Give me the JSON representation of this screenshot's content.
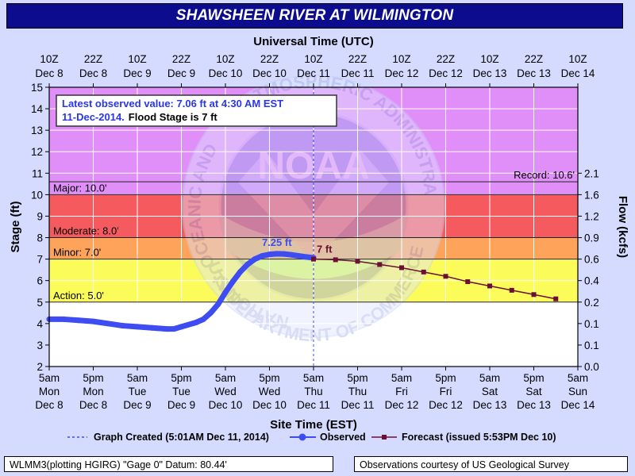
{
  "chart_data": {
    "type": "line",
    "title": "SHAWSHEEN RIVER AT WILMINGTON",
    "top_axis_title": "Universal Time (UTC)",
    "bottom_axis_title": "Site Time (EST)",
    "left_axis_title": "Stage (ft)",
    "right_axis_title": "Flow (kcfs)",
    "x_range_hours": [
      0,
      144
    ],
    "ylim": [
      2,
      15
    ],
    "y_ticks": [
      "2",
      "3",
      "4",
      "5",
      "6",
      "7",
      "8",
      "9",
      "10",
      "11",
      "12",
      "13",
      "14",
      "15"
    ],
    "flow_ticks": [
      {
        "stage": 2.0,
        "label": "0.0"
      },
      {
        "stage": 3.0,
        "label": "0.1"
      },
      {
        "stage": 4.0,
        "label": "0.1"
      },
      {
        "stage": 5.0,
        "label": "0.2"
      },
      {
        "stage": 6.0,
        "label": "0.4"
      },
      {
        "stage": 7.0,
        "label": "0.6"
      },
      {
        "stage": 8.0,
        "label": "0.9"
      },
      {
        "stage": 9.0,
        "label": "1.2"
      },
      {
        "stage": 10.0,
        "label": "1.6"
      },
      {
        "stage": 11.0,
        "label": "2.1"
      }
    ],
    "utc_ticks": [
      {
        "hour": 0,
        "l1": "10Z",
        "l2": "Dec 8"
      },
      {
        "hour": 12,
        "l1": "22Z",
        "l2": "Dec 8"
      },
      {
        "hour": 24,
        "l1": "10Z",
        "l2": "Dec 9"
      },
      {
        "hour": 36,
        "l1": "22Z",
        "l2": "Dec 9"
      },
      {
        "hour": 48,
        "l1": "10Z",
        "l2": "Dec 10"
      },
      {
        "hour": 60,
        "l1": "22Z",
        "l2": "Dec 10"
      },
      {
        "hour": 72,
        "l1": "10Z",
        "l2": "Dec 11"
      },
      {
        "hour": 84,
        "l1": "22Z",
        "l2": "Dec 11"
      },
      {
        "hour": 96,
        "l1": "10Z",
        "l2": "Dec 12"
      },
      {
        "hour": 108,
        "l1": "22Z",
        "l2": "Dec 12"
      },
      {
        "hour": 120,
        "l1": "10Z",
        "l2": "Dec 13"
      },
      {
        "hour": 132,
        "l1": "22Z",
        "l2": "Dec 13"
      },
      {
        "hour": 144,
        "l1": "10Z",
        "l2": "Dec 14"
      }
    ],
    "est_ticks": [
      {
        "hour": 0,
        "l1": "5am",
        "l2": "Mon",
        "l3": "Dec 8"
      },
      {
        "hour": 12,
        "l1": "5pm",
        "l2": "Mon",
        "l3": "Dec 8"
      },
      {
        "hour": 24,
        "l1": "5am",
        "l2": "Tue",
        "l3": "Dec 9"
      },
      {
        "hour": 36,
        "l1": "5pm",
        "l2": "Tue",
        "l3": "Dec 9"
      },
      {
        "hour": 48,
        "l1": "5am",
        "l2": "Wed",
        "l3": "Dec 10"
      },
      {
        "hour": 60,
        "l1": "5pm",
        "l2": "Wed",
        "l3": "Dec 10"
      },
      {
        "hour": 72,
        "l1": "5am",
        "l2": "Thu",
        "l3": "Dec 11"
      },
      {
        "hour": 84,
        "l1": "5pm",
        "l2": "Thu",
        "l3": "Dec 11"
      },
      {
        "hour": 96,
        "l1": "5am",
        "l2": "Fri",
        "l3": "Dec 12"
      },
      {
        "hour": 108,
        "l1": "5pm",
        "l2": "Fri",
        "l3": "Dec 12"
      },
      {
        "hour": 120,
        "l1": "5am",
        "l2": "Sat",
        "l3": "Dec 13"
      },
      {
        "hour": 132,
        "l1": "5pm",
        "l2": "Sat",
        "l3": "Dec 13"
      },
      {
        "hour": 144,
        "l1": "5am",
        "l2": "Sun",
        "l3": "Dec 14"
      }
    ],
    "bands": [
      {
        "name": "record",
        "from": 10.0,
        "to": 15.0,
        "color": "#e08ef8"
      },
      {
        "name": "major",
        "from": 8.0,
        "to": 10.0,
        "color": "#f55a5e"
      },
      {
        "name": "moderate",
        "from": 7.0,
        "to": 8.0,
        "color": "#fda35a"
      },
      {
        "name": "minor",
        "from": 5.0,
        "to": 7.0,
        "color": "#fbfb5a"
      },
      {
        "name": "normal",
        "from": 2.0,
        "to": 5.0,
        "color": "#ffffff"
      }
    ],
    "thresholds": [
      {
        "stage": 10.6,
        "label": "Record: 10.6'",
        "anchor": "right"
      },
      {
        "stage": 10.0,
        "label": "Major: 10.0'",
        "anchor": "left"
      },
      {
        "stage": 8.0,
        "label": "Moderate: 8.0'",
        "anchor": "left"
      },
      {
        "stage": 7.0,
        "label": "Minor: 7.0'",
        "anchor": "left"
      },
      {
        "stage": 5.0,
        "label": "Action: 5.0'",
        "anchor": "left"
      }
    ],
    "series": [
      {
        "name": "Observed",
        "color": "#3d4df2",
        "points": [
          [
            0,
            4.2
          ],
          [
            4,
            4.2
          ],
          [
            8,
            4.15
          ],
          [
            12,
            4.1
          ],
          [
            16,
            4.0
          ],
          [
            20,
            3.9
          ],
          [
            24,
            3.85
          ],
          [
            28,
            3.8
          ],
          [
            32,
            3.75
          ],
          [
            34,
            3.75
          ],
          [
            36,
            3.85
          ],
          [
            40,
            4.05
          ],
          [
            42,
            4.2
          ],
          [
            44,
            4.5
          ],
          [
            46,
            4.9
          ],
          [
            48,
            5.45
          ],
          [
            50,
            5.95
          ],
          [
            52,
            6.4
          ],
          [
            54,
            6.75
          ],
          [
            56,
            7.0
          ],
          [
            58,
            7.15
          ],
          [
            60,
            7.22
          ],
          [
            62,
            7.25
          ],
          [
            64,
            7.24
          ],
          [
            66,
            7.2
          ],
          [
            68,
            7.15
          ],
          [
            70,
            7.1
          ],
          [
            72,
            7.06
          ]
        ]
      },
      {
        "name": "Forecast (issued 5:53PM Dec 10)",
        "color": "#6b0f33",
        "points": [
          [
            72,
            7.0
          ],
          [
            78,
            6.97
          ],
          [
            84,
            6.9
          ],
          [
            90,
            6.75
          ],
          [
            96,
            6.6
          ],
          [
            102,
            6.4
          ],
          [
            108,
            6.2
          ],
          [
            114,
            5.95
          ],
          [
            120,
            5.75
          ],
          [
            126,
            5.55
          ],
          [
            132,
            5.35
          ],
          [
            138,
            5.15
          ]
        ]
      }
    ],
    "graph_created_hour": 72,
    "peak_label": "7.25 ft",
    "peak_hour": 62,
    "peak_stage": 7.25,
    "forecast_start_label": "7 ft",
    "forecast_start_hour": 72,
    "forecast_start_stage": 7.0,
    "info_box": {
      "line1": "Latest observed value: 7.06 ft at 4:30 AM EST",
      "line2a": "11-Dec-2014.",
      "line2b": "Flood Stage is 7 ft"
    },
    "legend": {
      "graph_created": "Graph Created (5:01AM Dec 11, 2014)",
      "observed": "Observed",
      "forecast": "Forecast (issued 5:53PM Dec 10)"
    },
    "watermark_text_top": "ATMOSPHERIC ADMINISTRATION",
    "watermark_text_left": "NATIONAL OCEANIC AND",
    "watermark_text_bottom": "U.S. DEPARTMENT OF COMMERCE",
    "watermark_logo": "NOAA",
    "colors": {
      "observed": "#3d4df2",
      "forecast": "#6b0f33",
      "info_text": "#2a37e8",
      "title_bg": "#0c0c8f"
    }
  },
  "footer": {
    "left": "WLMM3(plotting HGIRG) \"Gage 0\" Datum: 80.44'",
    "right": "Observations courtesy of US Geological Survey"
  }
}
